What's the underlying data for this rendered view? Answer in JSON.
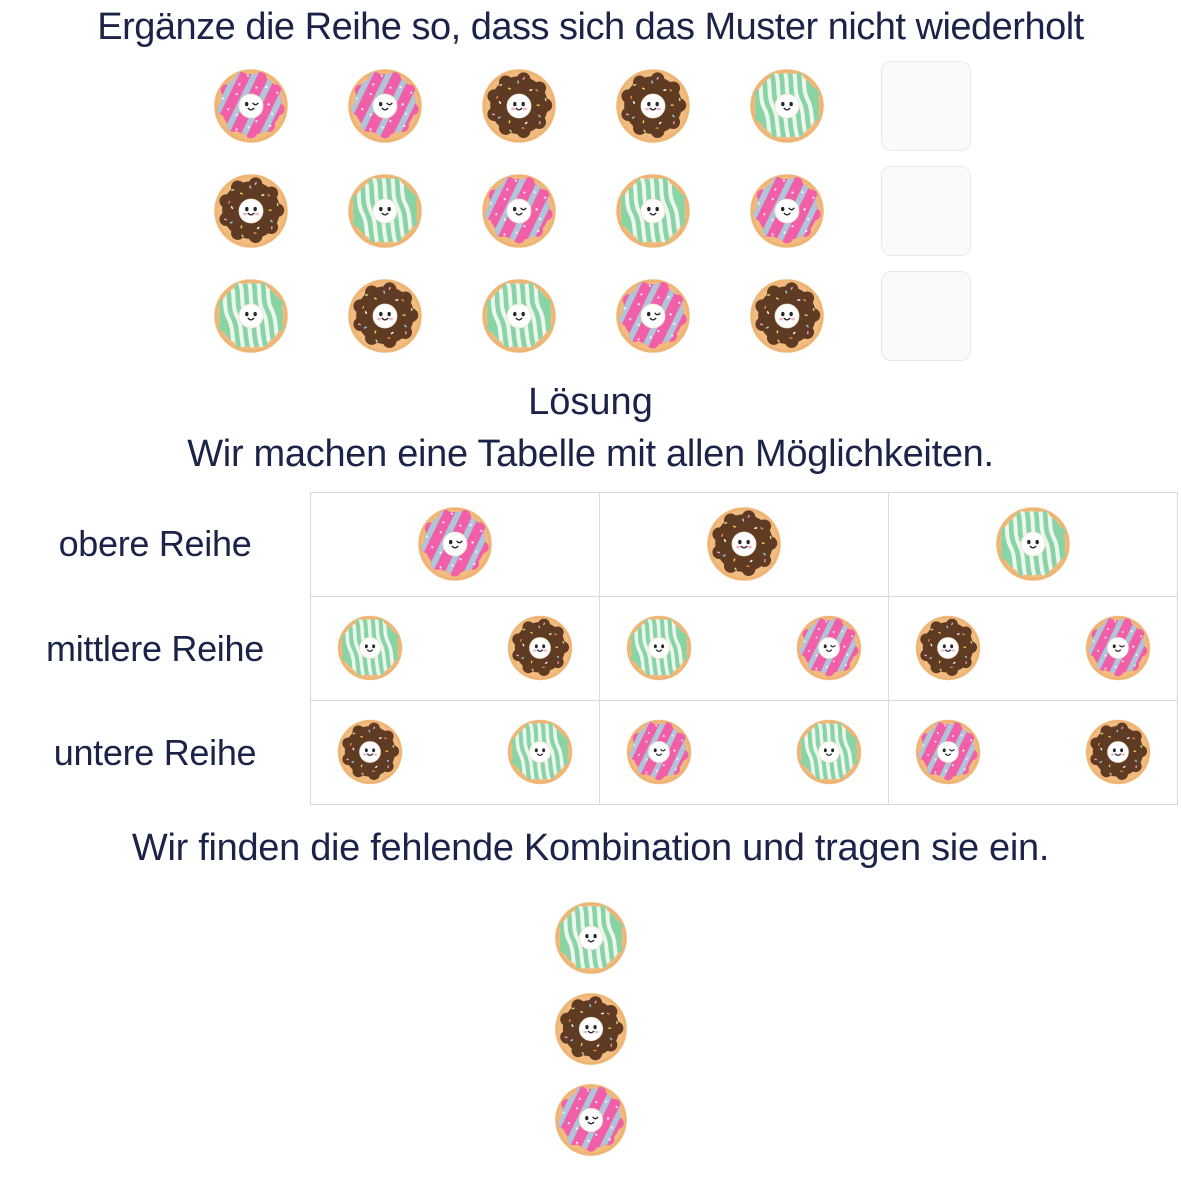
{
  "title": "Ergänze die Reihe so, dass sich das Muster nicht wiederholt",
  "solution": {
    "heading": "Lösung",
    "intro": "Wir machen eine Tabelle mit allen Möglichkeiten.",
    "outro": "Wir finden die fehlende Kombination und tragen sie ein."
  },
  "donut_types": {
    "pink": "pink-frosted-donut-winking",
    "brown": "chocolate-sprinkle-donut",
    "green": "mint-striped-donut"
  },
  "puzzle": {
    "rows": [
      {
        "donuts": [
          "pink",
          "pink",
          "brown",
          "brown",
          "green"
        ],
        "answer_slot": "empty"
      },
      {
        "donuts": [
          "brown",
          "green",
          "pink",
          "green",
          "pink"
        ],
        "answer_slot": "empty"
      },
      {
        "donuts": [
          "green",
          "brown",
          "green",
          "pink",
          "brown"
        ],
        "answer_slot": "empty"
      }
    ]
  },
  "solution_table": {
    "rows": [
      {
        "label": "obere Reihe",
        "cells": [
          [
            "pink"
          ],
          [
            "brown"
          ],
          [
            "green"
          ]
        ]
      },
      {
        "label": "mittlere Reihe",
        "cells": [
          [
            "green",
            "brown"
          ],
          [
            "green",
            "pink"
          ],
          [
            "brown",
            "pink"
          ]
        ]
      },
      {
        "label": "untere Reihe",
        "cells": [
          [
            "brown",
            "green"
          ],
          [
            "pink",
            "green"
          ],
          [
            "pink",
            "brown"
          ]
        ]
      }
    ]
  },
  "answer_stack": [
    "green",
    "brown",
    "pink"
  ],
  "colors": {
    "text": "#1b2348",
    "table_border": "#d9dadc",
    "slot_fill": "#f9fafb",
    "slot_border": "#e7e9ec",
    "dough": "#f2bc80",
    "dough_edge": "#e8a55f",
    "pink_frosting": "#f05fa8",
    "pink_stripe": "#afc5da",
    "brown_frosting": "#5f3b23",
    "green_frosting": "#89d4a4",
    "green_stripe": "#edf7ef",
    "face_bg": "#ffffff",
    "face_ring": "#f0e3cd",
    "face_features": "#262626",
    "cheek": "#f5a8bb"
  }
}
